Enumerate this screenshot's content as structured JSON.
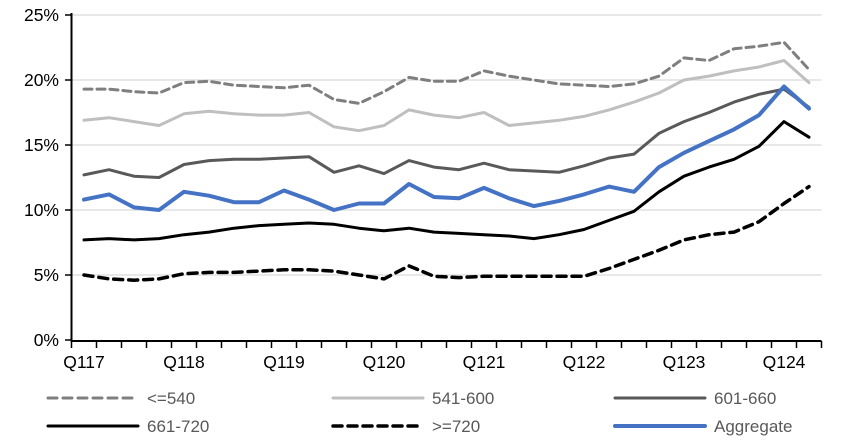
{
  "chart_data": {
    "type": "line",
    "title": "",
    "xlabel": "",
    "ylabel": "",
    "ylim": [
      0,
      25
    ],
    "grid": true,
    "legend_position": "bottom",
    "y_ticks": [
      "0%",
      "5%",
      "10%",
      "15%",
      "20%",
      "25%"
    ],
    "x_tick_labels": [
      "Q117",
      "Q118",
      "Q119",
      "Q120",
      "Q121",
      "Q122",
      "Q123",
      "Q124"
    ],
    "categories": [
      "Q117",
      "Q217",
      "Q317",
      "Q417",
      "Q118",
      "Q218",
      "Q318",
      "Q418",
      "Q119",
      "Q219",
      "Q319",
      "Q419",
      "Q120",
      "Q220",
      "Q320",
      "Q420",
      "Q121",
      "Q221",
      "Q321",
      "Q421",
      "Q122",
      "Q222",
      "Q322",
      "Q422",
      "Q123",
      "Q223",
      "Q323",
      "Q423",
      "Q124",
      "Q224"
    ],
    "series": [
      {
        "name": "<=540",
        "color": "#7f7f7f",
        "style": "dashed",
        "width": 3,
        "values": [
          19.3,
          19.3,
          19.1,
          19.0,
          19.8,
          19.9,
          19.6,
          19.5,
          19.4,
          19.6,
          18.5,
          18.2,
          19.1,
          20.2,
          19.9,
          19.9,
          20.7,
          20.3,
          20.0,
          19.7,
          19.6,
          19.5,
          19.7,
          20.3,
          21.7,
          21.5,
          22.4,
          22.6,
          22.9,
          20.8
        ]
      },
      {
        "name": "541-600",
        "color": "#bfbfbf",
        "style": "solid",
        "width": 3,
        "values": [
          16.9,
          17.1,
          16.8,
          16.5,
          17.4,
          17.6,
          17.4,
          17.3,
          17.3,
          17.5,
          16.4,
          16.1,
          16.5,
          17.7,
          17.3,
          17.1,
          17.5,
          16.5,
          16.7,
          16.9,
          17.2,
          17.7,
          18.3,
          19.0,
          20.0,
          20.3,
          20.7,
          21.0,
          21.5,
          19.8
        ]
      },
      {
        "name": "601-660",
        "color": "#595959",
        "style": "solid",
        "width": 3,
        "values": [
          12.7,
          13.1,
          12.6,
          12.5,
          13.5,
          13.8,
          13.9,
          13.9,
          14.0,
          14.1,
          12.9,
          13.4,
          12.8,
          13.8,
          13.3,
          13.1,
          13.6,
          13.1,
          13.0,
          12.9,
          13.4,
          14.0,
          14.3,
          15.9,
          16.8,
          17.5,
          18.3,
          18.9,
          19.3,
          17.9
        ]
      },
      {
        "name": "661-720",
        "color": "#000000",
        "style": "solid",
        "width": 3,
        "values": [
          7.7,
          7.8,
          7.7,
          7.8,
          8.1,
          8.3,
          8.6,
          8.8,
          8.9,
          9.0,
          8.9,
          8.6,
          8.4,
          8.6,
          8.3,
          8.2,
          8.1,
          8.0,
          7.8,
          8.1,
          8.5,
          9.2,
          9.9,
          11.4,
          12.6,
          13.3,
          13.9,
          14.9,
          16.8,
          15.6
        ]
      },
      {
        "name": ">=720",
        "color": "#000000",
        "style": "dashed",
        "width": 3.5,
        "values": [
          5.0,
          4.7,
          4.6,
          4.7,
          5.1,
          5.2,
          5.2,
          5.3,
          5.4,
          5.4,
          5.3,
          5.0,
          4.7,
          5.7,
          4.9,
          4.8,
          4.9,
          4.9,
          4.9,
          4.9,
          4.9,
          5.5,
          6.2,
          6.9,
          7.7,
          8.1,
          8.3,
          9.1,
          10.5,
          11.8
        ]
      },
      {
        "name": "Aggregate",
        "color": "#4472c4",
        "style": "solid",
        "width": 4,
        "values": [
          10.8,
          11.2,
          10.2,
          10.0,
          11.4,
          11.1,
          10.6,
          10.6,
          11.5,
          10.8,
          10.0,
          10.5,
          10.5,
          12.0,
          11.0,
          10.9,
          11.7,
          10.9,
          10.3,
          10.7,
          11.2,
          11.8,
          11.4,
          13.3,
          14.4,
          15.3,
          16.2,
          17.3,
          19.5,
          17.8
        ]
      }
    ],
    "colors": {
      "gridline": "#d9d9d9",
      "axis": "#000000",
      "axis_label": "#000000",
      "legend_text": "#595959",
      "background": "#ffffff",
      "accent_blue": "#4472c4"
    }
  }
}
